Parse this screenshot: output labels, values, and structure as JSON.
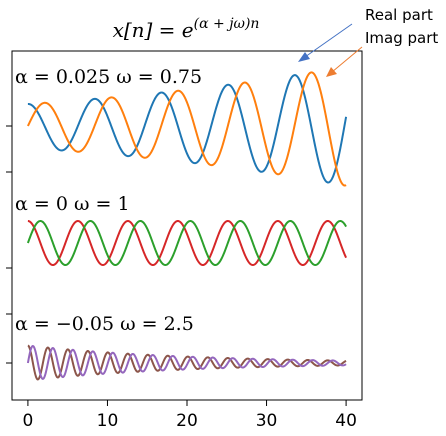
{
  "chart_data": {
    "type": "line",
    "title": "x[n] = e^{(α + jω)n}",
    "title_parts": {
      "lhs": "x[n] = e",
      "exponent": "(α + jω)n"
    },
    "xlabel": "",
    "ylabel": "",
    "xlim": [
      -2,
      42
    ],
    "xticks": [
      0,
      10,
      20,
      30,
      40
    ],
    "grid": false,
    "annotations": [
      {
        "text": "Real part",
        "points_to": "Real part of first panel",
        "color": "#4472c4"
      },
      {
        "text": "Imag part",
        "points_to": "Imag part of first panel",
        "color": "#ed7d31"
      }
    ],
    "panels": [
      {
        "label": "α = 0.025  ω = 0.75",
        "alpha": 0.025,
        "omega": 0.75,
        "n_range": [
          0,
          40
        ],
        "series": [
          {
            "name": "Real part",
            "part": "real",
            "color": "#1f77b4"
          },
          {
            "name": "Imag part",
            "part": "imag",
            "color": "#ff7f0e"
          }
        ]
      },
      {
        "label": "α = 0  ω = 1",
        "alpha": 0,
        "omega": 1,
        "n_range": [
          0,
          40
        ],
        "series": [
          {
            "part": "real",
            "color": "#d62728"
          },
          {
            "part": "imag",
            "color": "#2ca02c"
          }
        ]
      },
      {
        "label": "α = −0.05  ω = 2.5",
        "alpha": -0.05,
        "omega": 2.5,
        "n_range": [
          0,
          40
        ],
        "series": [
          {
            "part": "real",
            "color": "#8c564b"
          },
          {
            "part": "imag",
            "color": "#9467bd"
          }
        ]
      }
    ]
  }
}
